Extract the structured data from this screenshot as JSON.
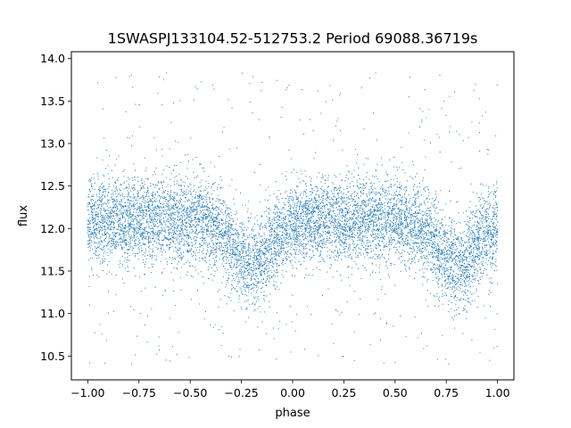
{
  "chart_data": {
    "type": "scatter",
    "title": "1SWASPJ133104.52-512753.2 Period 69088.36719s",
    "xlabel": "phase",
    "ylabel": "flux",
    "xlim": [
      -1.08,
      1.08
    ],
    "ylim": [
      10.22,
      14.08
    ],
    "x_ticks": [
      -1.0,
      -0.75,
      -0.5,
      -0.25,
      0.0,
      0.25,
      0.5,
      0.75,
      1.0
    ],
    "x_tick_labels": [
      "−1.00",
      "−0.75",
      "−0.50",
      "−0.25",
      "0.00",
      "0.25",
      "0.50",
      "0.75",
      "1.00"
    ],
    "y_ticks": [
      10.5,
      11.0,
      11.5,
      12.0,
      12.5,
      13.0,
      13.5,
      14.0
    ],
    "y_tick_labels": [
      "10.5",
      "11.0",
      "11.5",
      "12.0",
      "12.5",
      "13.0",
      "13.5",
      "14.0"
    ],
    "grid": false,
    "marker_color": "#1f77b4",
    "series": [
      {
        "x_range": [
          -1.0,
          1.0
        ],
        "baseline_flux": 12.1,
        "scatter_sigma": 0.25,
        "dips": [
          {
            "center_phase": -0.2,
            "depth": 0.55,
            "width": 0.09
          },
          {
            "center_phase": 0.8,
            "depth": 0.55,
            "width": 0.09
          }
        ],
        "outlier_range": [
          10.4,
          13.85
        ]
      }
    ]
  }
}
